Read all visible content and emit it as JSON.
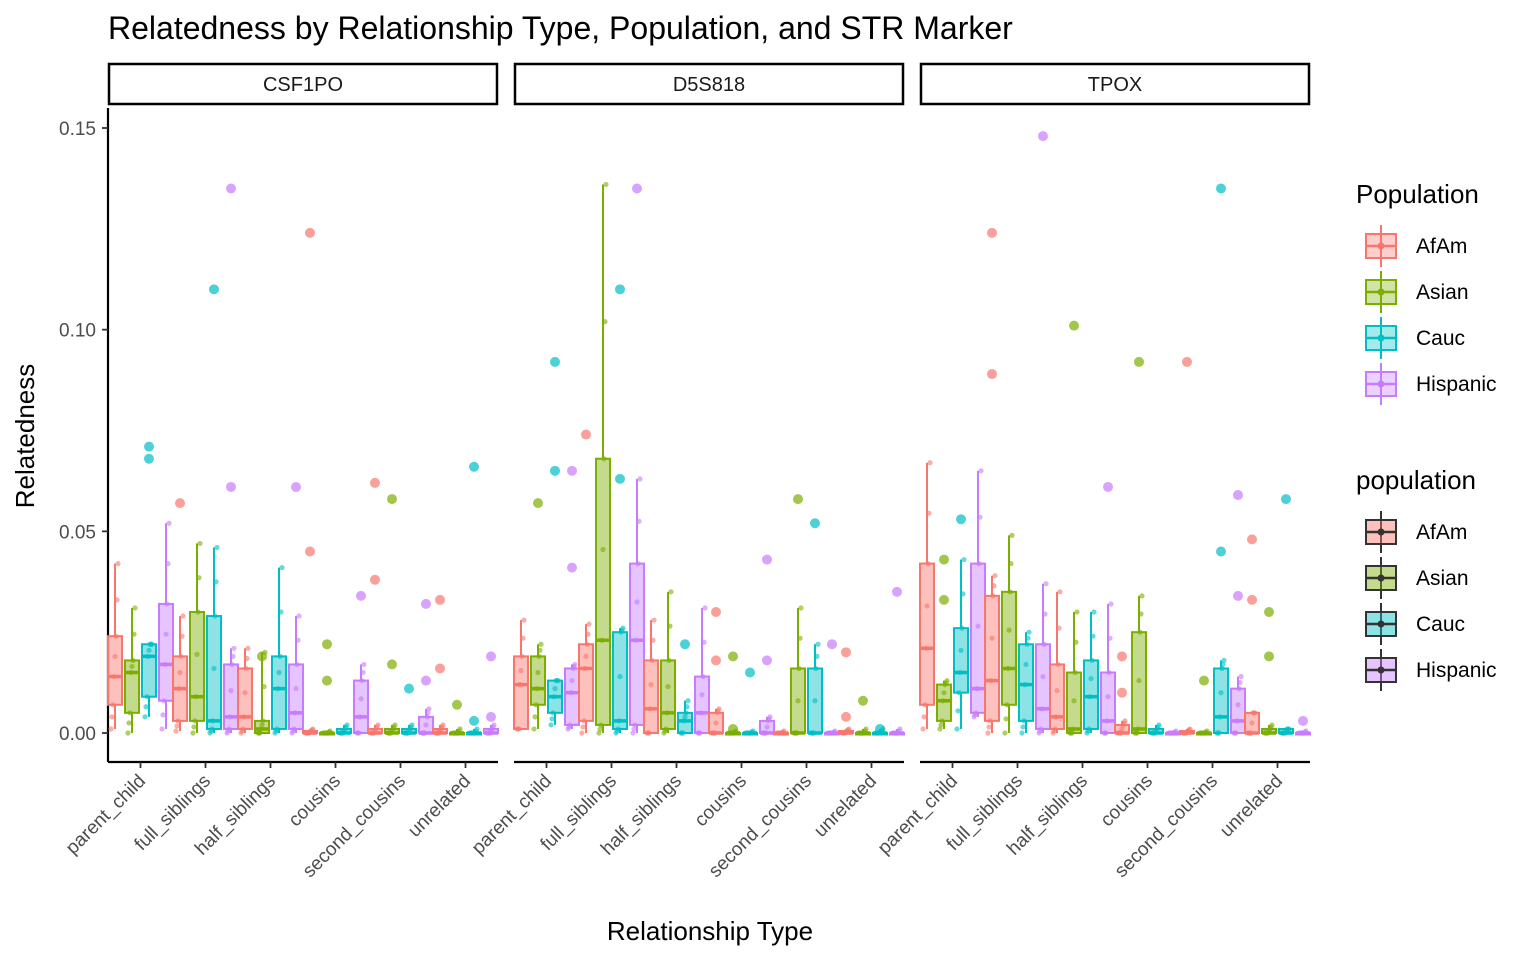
{
  "chart_data": {
    "type": "boxplot",
    "title": "Relatedness by Relationship Type, Population, and STR Marker",
    "xlabel": "Relationship Type",
    "ylabel": "Relatedness",
    "ylim": [
      -0.007,
      0.155
    ],
    "yticks": [
      0.0,
      0.05,
      0.1,
      0.15
    ],
    "ytick_labels": [
      "0.00",
      "0.05",
      "0.10",
      "0.15"
    ],
    "categories": [
      "parent_child",
      "full_siblings",
      "half_siblings",
      "cousins",
      "second_cousins",
      "unrelated"
    ],
    "populations": [
      "AfAm",
      "Asian",
      "Cauc",
      "Hispanic"
    ],
    "colors": {
      "AfAm": "#F8766D",
      "Asian": "#7CAE00",
      "Cauc": "#00BFC4",
      "Hispanic": "#C77CFF"
    },
    "legends": [
      {
        "title": "Population",
        "items": [
          "AfAm",
          "Asian",
          "Cauc",
          "Hispanic"
        ]
      },
      {
        "title": "population",
        "items": [
          "AfAm",
          "Asian",
          "Cauc",
          "Hispanic"
        ]
      }
    ],
    "panels": [
      {
        "title": "CSF1PO",
        "boxes": {
          "AfAm": [
            [
              0.001,
              0.007,
              0.014,
              0.024,
              0.042
            ],
            [
              0.0005,
              0.003,
              0.011,
              0.019,
              0.029
            ],
            [
              0,
              0.001,
              0.004,
              0.016,
              0.021
            ],
            [
              0,
              0,
              0,
              0.0005,
              0.001
            ],
            [
              0,
              0,
              0,
              0.001,
              0.002
            ],
            [
              0,
              0,
              0,
              0.001,
              0.002
            ]
          ],
          "Asian": [
            [
              0,
              0.005,
              0.015,
              0.018,
              0.031
            ],
            [
              0,
              0.003,
              0.009,
              0.03,
              0.047
            ],
            [
              0,
              0,
              0.001,
              0.003,
              0.02
            ],
            [
              0,
              0,
              0,
              0,
              0.0005
            ],
            [
              0,
              0,
              0,
              0.001,
              0.002
            ],
            [
              0,
              0,
              0,
              0,
              0.001
            ]
          ],
          "Cauc": [
            [
              0.004,
              0.009,
              0.019,
              0.022,
              0.022
            ],
            [
              0,
              0.001,
              0.003,
              0.029,
              0.046
            ],
            [
              0,
              0.001,
              0.011,
              0.019,
              0.041
            ],
            [
              0,
              0,
              0,
              0.001,
              0.002
            ],
            [
              0,
              0,
              0,
              0.001,
              0.002
            ],
            [
              0,
              0,
              0,
              0,
              0.001
            ]
          ],
          "Hispanic": [
            [
              0.001,
              0.008,
              0.017,
              0.032,
              0.052
            ],
            [
              0,
              0.001,
              0.004,
              0.017,
              0.021
            ],
            [
              0,
              0.001,
              0.005,
              0.017,
              0.029
            ],
            [
              0,
              0,
              0.004,
              0.013,
              0.017
            ],
            [
              0,
              0,
              0,
              0.004,
              0.006
            ],
            [
              0,
              0,
              0,
              0.001,
              0.002
            ]
          ]
        },
        "outliers": {
          "AfAm": [
            [],
            [
              0.057
            ],
            [],
            [
              0.124,
              0.045
            ],
            [
              0.062,
              0.038
            ],
            [
              0.033,
              0.016
            ]
          ],
          "Asian": [
            [],
            [],
            [
              0.019
            ],
            [
              0.022,
              0.013
            ],
            [
              0.058,
              0.017
            ],
            [
              0.007
            ]
          ],
          "Cauc": [
            [
              0.071,
              0.068
            ],
            [
              0.11
            ],
            [],
            [],
            [
              0.011
            ],
            [
              0.066,
              0.003
            ]
          ],
          "Hispanic": [
            [],
            [
              0.135,
              0.061
            ],
            [
              0.061
            ],
            [
              0.034
            ],
            [
              0.032,
              0.013
            ],
            [
              0.019,
              0.004
            ]
          ]
        }
      },
      {
        "title": "D5S818",
        "boxes": {
          "AfAm": [
            [
              0.001,
              0.001,
              0.012,
              0.019,
              0.028
            ],
            [
              0,
              0.003,
              0.016,
              0.022,
              0.027
            ],
            [
              0,
              0,
              0.006,
              0.018,
              0.028
            ],
            [
              0,
              0,
              0,
              0.005,
              0.006
            ],
            [
              0,
              0,
              0,
              0,
              0.0005
            ],
            [
              0,
              0,
              0,
              0.0005,
              0.001
            ]
          ],
          "Asian": [
            [
              0.001,
              0.007,
              0.011,
              0.019,
              0.022
            ],
            [
              0,
              0.002,
              0.023,
              0.068,
              0.136
            ],
            [
              0,
              0.001,
              0.005,
              0.018,
              0.035
            ],
            [
              0,
              0,
              0,
              0,
              0.0005
            ],
            [
              0,
              0,
              0,
              0.016,
              0.031
            ],
            [
              0,
              0,
              0,
              0,
              0.001
            ]
          ],
          "Cauc": [
            [
              0.002,
              0.005,
              0.009,
              0.013,
              0.013
            ],
            [
              0,
              0.001,
              0.003,
              0.025,
              0.026
            ],
            [
              0,
              0,
              0.003,
              0.005,
              0.008
            ],
            [
              0,
              0,
              0,
              0,
              0.0005
            ],
            [
              0,
              0,
              0,
              0.016,
              0.022
            ],
            [
              0,
              0,
              0,
              0,
              0.001
            ]
          ],
          "Hispanic": [
            [
              0.001,
              0.002,
              0.01,
              0.016,
              0.017
            ],
            [
              0,
              0.002,
              0.023,
              0.042,
              0.063
            ],
            [
              0,
              0,
              0.005,
              0.014,
              0.031
            ],
            [
              0,
              0,
              0,
              0.003,
              0.004
            ],
            [
              0,
              0,
              0,
              0,
              0.0005
            ],
            [
              0,
              0,
              0,
              0,
              0.001
            ]
          ]
        },
        "outliers": {
          "AfAm": [
            [],
            [
              0.074
            ],
            [],
            [
              0.03,
              0.018
            ],
            [],
            [
              0.02,
              0.004
            ]
          ],
          "Asian": [
            [
              0.057
            ],
            [],
            [],
            [
              0.019,
              0.001
            ],
            [
              0.058
            ],
            [
              0.008
            ]
          ],
          "Cauc": [
            [
              0.092,
              0.065
            ],
            [
              0.11,
              0.063
            ],
            [
              0.022
            ],
            [
              0.015
            ],
            [
              0.052
            ],
            [
              0.001
            ]
          ],
          "Hispanic": [
            [
              0.065,
              0.041
            ],
            [
              0.135
            ],
            [],
            [
              0.043,
              0.018
            ],
            [
              0.022
            ],
            [
              0.035
            ]
          ]
        }
      },
      {
        "title": "TPOX",
        "boxes": {
          "AfAm": [
            [
              0.001,
              0.007,
              0.021,
              0.042,
              0.067
            ],
            [
              0,
              0.003,
              0.013,
              0.034,
              0.039
            ],
            [
              0,
              0.001,
              0.004,
              0.017,
              0.035
            ],
            [
              0,
              0,
              0,
              0.002,
              0.003
            ],
            [
              0,
              0,
              0,
              0.0005,
              0.001
            ],
            [
              0,
              0,
              0,
              0.005,
              0.005
            ]
          ],
          "Asian": [
            [
              0.001,
              0.003,
              0.008,
              0.012,
              0.013
            ],
            [
              0,
              0.007,
              0.016,
              0.035,
              0.049
            ],
            [
              0,
              0,
              0.001,
              0.015,
              0.03
            ],
            [
              0,
              0,
              0.001,
              0.025,
              0.034
            ],
            [
              0,
              0,
              0,
              0,
              0.0005
            ],
            [
              0,
              0,
              0,
              0.001,
              0.002
            ]
          ],
          "Cauc": [
            [
              0.001,
              0.01,
              0.015,
              0.026,
              0.043
            ],
            [
              0,
              0.003,
              0.012,
              0.022,
              0.025
            ],
            [
              0,
              0.001,
              0.009,
              0.018,
              0.03
            ],
            [
              0,
              0,
              0,
              0.001,
              0.002
            ],
            [
              0,
              0,
              0.004,
              0.016,
              0.018
            ],
            [
              0,
              0,
              0,
              0.001,
              0.001
            ]
          ],
          "Hispanic": [
            [
              0.004,
              0.005,
              0.011,
              0.042,
              0.065
            ],
            [
              0,
              0.001,
              0.006,
              0.022,
              0.037
            ],
            [
              0,
              0,
              0.003,
              0.015,
              0.032
            ],
            [
              0,
              0,
              0,
              0,
              0.0005
            ],
            [
              0,
              0,
              0.003,
              0.011,
              0.014
            ],
            [
              0,
              0,
              0,
              0,
              0.0005
            ]
          ]
        },
        "outliers": {
          "AfAm": [
            [],
            [
              0.124,
              0.089
            ],
            [],
            [
              0.019,
              0.01
            ],
            [
              0.092
            ],
            [
              0.048,
              0.033
            ]
          ],
          "Asian": [
            [
              0.043,
              0.033
            ],
            [],
            [
              0.101
            ],
            [
              0.092
            ],
            [
              0.013
            ],
            [
              0.03,
              0.019
            ]
          ],
          "Cauc": [
            [
              0.053
            ],
            [],
            [],
            [],
            [
              0.135,
              0.045
            ],
            [
              0.058
            ]
          ],
          "Hispanic": [
            [],
            [
              0.148
            ],
            [
              0.061
            ],
            [],
            [
              0.059,
              0.034
            ],
            [
              0.003
            ]
          ]
        }
      }
    ]
  }
}
